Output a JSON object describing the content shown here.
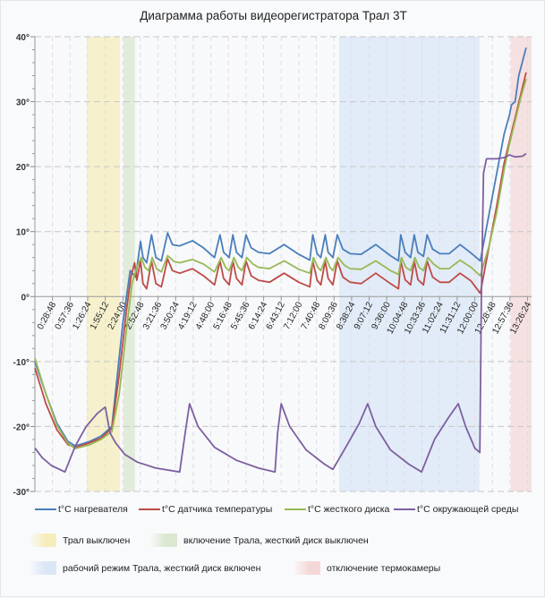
{
  "chart_data": {
    "type": "line",
    "title": "Диаграмма работы видеорегистратора Трал 3T",
    "xlabel": "",
    "ylabel": "",
    "x_unit": "hours",
    "xlim": [
      0,
      13.55
    ],
    "ylim": [
      -30,
      40
    ],
    "y_ticks": [
      "-30°",
      "-20°",
      "-10°",
      "0°",
      "10°",
      "20°",
      "30°",
      "40°"
    ],
    "y_tick_values": [
      -30,
      -20,
      -10,
      0,
      10,
      20,
      30,
      40
    ],
    "x_ticks": [
      "0:28:48",
      "0:57:36",
      "1:26:24",
      "1:55:12",
      "2:24:00",
      "2:52:48",
      "3:21:36",
      "3:50:24",
      "4:19:12",
      "4:48:00",
      "5:16:48",
      "5:45:36",
      "6:14:24",
      "6:43:12",
      "7:12:00",
      "7:40:48",
      "8:09:36",
      "8:38:24",
      "9:07:12",
      "9:36:00",
      "10:04:48",
      "10:33:36",
      "11:02:24",
      "11:31:12",
      "12:00:00",
      "12:28:48",
      "12:57:36",
      "13:26:24"
    ],
    "grid": true,
    "legend_position": "bottom",
    "series": [
      {
        "name": "t°C нагревателя",
        "color": "#4a7ebb",
        "points": [
          [
            0,
            -10
          ],
          [
            0.3,
            -15
          ],
          [
            0.6,
            -19.5
          ],
          [
            0.9,
            -22.3
          ],
          [
            1.1,
            -23
          ],
          [
            1.5,
            -22.3
          ],
          [
            1.8,
            -21.5
          ],
          [
            2.1,
            -20
          ],
          [
            2.25,
            -12
          ],
          [
            2.4,
            -4
          ],
          [
            2.6,
            4
          ],
          [
            2.75,
            3
          ],
          [
            2.88,
            8.5
          ],
          [
            2.95,
            6
          ],
          [
            3.05,
            5.2
          ],
          [
            3.18,
            9.5
          ],
          [
            3.3,
            6
          ],
          [
            3.45,
            5.5
          ],
          [
            3.62,
            9.8
          ],
          [
            3.75,
            8
          ],
          [
            3.95,
            7.8
          ],
          [
            4.3,
            8.6
          ],
          [
            4.6,
            7.5
          ],
          [
            4.9,
            6
          ],
          [
            5.05,
            9.5
          ],
          [
            5.15,
            6.8
          ],
          [
            5.3,
            6
          ],
          [
            5.4,
            9.5
          ],
          [
            5.5,
            6.8
          ],
          [
            5.65,
            6
          ],
          [
            5.76,
            9.5
          ],
          [
            5.9,
            7.5
          ],
          [
            6.1,
            6.8
          ],
          [
            6.4,
            6.6
          ],
          [
            6.8,
            8
          ],
          [
            7.2,
            6.5
          ],
          [
            7.5,
            5.6
          ],
          [
            7.58,
            9.5
          ],
          [
            7.7,
            6.6
          ],
          [
            7.8,
            6
          ],
          [
            7.92,
            9.5
          ],
          [
            8.0,
            6.8
          ],
          [
            8.13,
            6
          ],
          [
            8.25,
            9.5
          ],
          [
            8.4,
            7.3
          ],
          [
            8.6,
            6.6
          ],
          [
            8.9,
            6.5
          ],
          [
            9.3,
            8
          ],
          [
            9.7,
            6.3
          ],
          [
            9.92,
            5.5
          ],
          [
            9.98,
            9.5
          ],
          [
            10.1,
            6.8
          ],
          [
            10.25,
            6
          ],
          [
            10.35,
            9.5
          ],
          [
            10.45,
            6.8
          ],
          [
            10.6,
            6.2
          ],
          [
            10.7,
            9.5
          ],
          [
            10.85,
            7.3
          ],
          [
            11.05,
            6.6
          ],
          [
            11.3,
            6.6
          ],
          [
            11.6,
            8
          ],
          [
            11.9,
            6.7
          ],
          [
            12.15,
            5.5
          ],
          [
            12.4,
            13
          ],
          [
            12.6,
            19
          ],
          [
            12.8,
            25
          ],
          [
            12.95,
            28
          ],
          [
            13.0,
            29.5
          ],
          [
            13.1,
            30
          ],
          [
            13.2,
            34
          ],
          [
            13.4,
            38.3
          ]
        ]
      },
      {
        "name": "t°C датчика температуры",
        "color": "#be4b48",
        "points": [
          [
            0,
            -11
          ],
          [
            0.3,
            -16.5
          ],
          [
            0.6,
            -20.5
          ],
          [
            0.9,
            -22.8
          ],
          [
            1.1,
            -23.2
          ],
          [
            1.5,
            -22.5
          ],
          [
            1.8,
            -21.8
          ],
          [
            2.1,
            -20.3
          ],
          [
            2.3,
            -12
          ],
          [
            2.5,
            -2
          ],
          [
            2.62,
            3
          ],
          [
            2.72,
            5.2
          ],
          [
            2.78,
            2.5
          ],
          [
            2.88,
            5.5
          ],
          [
            2.95,
            2
          ],
          [
            3.05,
            1.2
          ],
          [
            3.18,
            5.5
          ],
          [
            3.3,
            2
          ],
          [
            3.45,
            1.5
          ],
          [
            3.62,
            5.8
          ],
          [
            3.75,
            4
          ],
          [
            3.95,
            3.6
          ],
          [
            4.3,
            4.3
          ],
          [
            4.6,
            3.2
          ],
          [
            4.9,
            1.8
          ],
          [
            5.05,
            5.5
          ],
          [
            5.15,
            2.8
          ],
          [
            5.3,
            1.8
          ],
          [
            5.4,
            5.5
          ],
          [
            5.5,
            2.8
          ],
          [
            5.65,
            1.8
          ],
          [
            5.76,
            5.5
          ],
          [
            5.9,
            3.2
          ],
          [
            6.1,
            2.5
          ],
          [
            6.4,
            2.2
          ],
          [
            6.8,
            3.6
          ],
          [
            7.2,
            2.2
          ],
          [
            7.5,
            1.5
          ],
          [
            7.58,
            5.5
          ],
          [
            7.7,
            2.5
          ],
          [
            7.8,
            1.8
          ],
          [
            7.92,
            5.5
          ],
          [
            8.0,
            2.8
          ],
          [
            8.13,
            1.8
          ],
          [
            8.25,
            5.5
          ],
          [
            8.4,
            3
          ],
          [
            8.6,
            2.2
          ],
          [
            8.9,
            2
          ],
          [
            9.3,
            3.6
          ],
          [
            9.7,
            2
          ],
          [
            9.92,
            1.2
          ],
          [
            9.98,
            5.5
          ],
          [
            10.1,
            2.6
          ],
          [
            10.25,
            1.8
          ],
          [
            10.35,
            5.5
          ],
          [
            10.45,
            2.6
          ],
          [
            10.6,
            1.8
          ],
          [
            10.7,
            5.5
          ],
          [
            10.85,
            3
          ],
          [
            11.05,
            2.2
          ],
          [
            11.3,
            2.2
          ],
          [
            11.6,
            3.6
          ],
          [
            11.9,
            2.4
          ],
          [
            12.15,
            0.5
          ],
          [
            12.4,
            8
          ],
          [
            12.6,
            14
          ],
          [
            12.8,
            20.5
          ],
          [
            12.95,
            24
          ],
          [
            13.1,
            27.5
          ],
          [
            13.25,
            31
          ],
          [
            13.4,
            34.5
          ]
        ]
      },
      {
        "name": "t°C жесткого диска",
        "color": "#98b954",
        "points": [
          [
            0,
            -9.5
          ],
          [
            0.3,
            -15
          ],
          [
            0.6,
            -19.8
          ],
          [
            0.9,
            -22.6
          ],
          [
            1.1,
            -23.4
          ],
          [
            1.5,
            -22.8
          ],
          [
            1.8,
            -22
          ],
          [
            2.1,
            -20.8
          ],
          [
            2.3,
            -15
          ],
          [
            2.5,
            -5
          ],
          [
            2.65,
            2
          ],
          [
            2.78,
            4.5
          ],
          [
            2.9,
            6
          ],
          [
            3.0,
            4.5
          ],
          [
            3.1,
            4
          ],
          [
            3.2,
            6
          ],
          [
            3.32,
            4.3
          ],
          [
            3.45,
            3.8
          ],
          [
            3.62,
            6.3
          ],
          [
            3.8,
            5.4
          ],
          [
            3.95,
            5.2
          ],
          [
            4.3,
            5.7
          ],
          [
            4.6,
            5
          ],
          [
            4.9,
            3.8
          ],
          [
            5.08,
            6
          ],
          [
            5.2,
            4.5
          ],
          [
            5.3,
            4
          ],
          [
            5.43,
            6
          ],
          [
            5.55,
            4.5
          ],
          [
            5.65,
            4
          ],
          [
            5.78,
            6
          ],
          [
            5.95,
            5
          ],
          [
            6.1,
            4.5
          ],
          [
            6.4,
            4.3
          ],
          [
            6.8,
            5.5
          ],
          [
            7.2,
            4.2
          ],
          [
            7.5,
            3.6
          ],
          [
            7.6,
            6
          ],
          [
            7.72,
            4.5
          ],
          [
            7.8,
            4
          ],
          [
            7.94,
            6
          ],
          [
            8.05,
            4.5
          ],
          [
            8.13,
            4
          ],
          [
            8.27,
            6
          ],
          [
            8.45,
            4.8
          ],
          [
            8.6,
            4.3
          ],
          [
            8.9,
            4.2
          ],
          [
            9.3,
            5.5
          ],
          [
            9.7,
            4
          ],
          [
            9.92,
            3.4
          ],
          [
            10.0,
            6
          ],
          [
            10.12,
            4.5
          ],
          [
            10.25,
            4
          ],
          [
            10.37,
            6
          ],
          [
            10.48,
            4.5
          ],
          [
            10.6,
            4
          ],
          [
            10.72,
            6
          ],
          [
            10.88,
            5
          ],
          [
            11.05,
            4.3
          ],
          [
            11.3,
            4.3
          ],
          [
            11.6,
            5.6
          ],
          [
            11.9,
            4.5
          ],
          [
            12.15,
            3.2
          ],
          [
            12.4,
            8
          ],
          [
            12.6,
            13
          ],
          [
            12.8,
            19.5
          ],
          [
            12.95,
            23.5
          ],
          [
            13.1,
            27
          ],
          [
            13.25,
            30.5
          ],
          [
            13.4,
            33.5
          ]
        ]
      },
      {
        "name": "t°C окружающей среды",
        "color": "#7d60a0",
        "points": [
          [
            0,
            -23.3
          ],
          [
            0.2,
            -24.8
          ],
          [
            0.45,
            -26
          ],
          [
            0.82,
            -27
          ],
          [
            1.1,
            -23
          ],
          [
            1.4,
            -20
          ],
          [
            1.7,
            -18
          ],
          [
            1.92,
            -17
          ],
          [
            2.05,
            -21
          ],
          [
            2.2,
            -22.5
          ],
          [
            2.45,
            -24.3
          ],
          [
            2.8,
            -25.5
          ],
          [
            3.3,
            -26.4
          ],
          [
            3.95,
            -27
          ],
          [
            4.1,
            -21
          ],
          [
            4.22,
            -16.5
          ],
          [
            4.45,
            -20
          ],
          [
            4.9,
            -23.2
          ],
          [
            5.5,
            -25.2
          ],
          [
            6.1,
            -26.4
          ],
          [
            6.55,
            -27
          ],
          [
            6.62,
            -21
          ],
          [
            6.72,
            -16.5
          ],
          [
            6.95,
            -20
          ],
          [
            7.4,
            -23.6
          ],
          [
            7.9,
            -25.8
          ],
          [
            8.13,
            -26.6
          ],
          [
            8.5,
            -23
          ],
          [
            8.85,
            -19.5
          ],
          [
            9.08,
            -16.5
          ],
          [
            9.3,
            -20
          ],
          [
            9.7,
            -23.6
          ],
          [
            10.2,
            -25.8
          ],
          [
            10.55,
            -27
          ],
          [
            10.9,
            -22
          ],
          [
            11.3,
            -18.5
          ],
          [
            11.55,
            -16.5
          ],
          [
            11.75,
            -20
          ],
          [
            12.0,
            -23.3
          ],
          [
            12.14,
            -24
          ],
          [
            12.18,
            0
          ],
          [
            12.24,
            19
          ],
          [
            12.32,
            21.2
          ],
          [
            12.6,
            21.2
          ],
          [
            12.8,
            21.4
          ],
          [
            12.95,
            21.8
          ],
          [
            13.1,
            21.5
          ],
          [
            13.3,
            21.6
          ],
          [
            13.4,
            22
          ]
        ]
      }
    ],
    "regions": [
      {
        "label": "Трал выключен",
        "from": 1.41,
        "to": 2.32,
        "color": "#f5eebc"
      },
      {
        "label": "включение Трала, жесткий диск выключен",
        "from": 2.42,
        "to": 2.73,
        "color": "#dbe7d0"
      },
      {
        "label": "рабочий режим Трала, жесткий диск включен",
        "from": 8.3,
        "to": 12.13,
        "color": "#dbe7f7"
      },
      {
        "label": "отключение термокамеры",
        "from": 12.98,
        "to": 13.55,
        "color": "#f4d8d8"
      }
    ]
  }
}
